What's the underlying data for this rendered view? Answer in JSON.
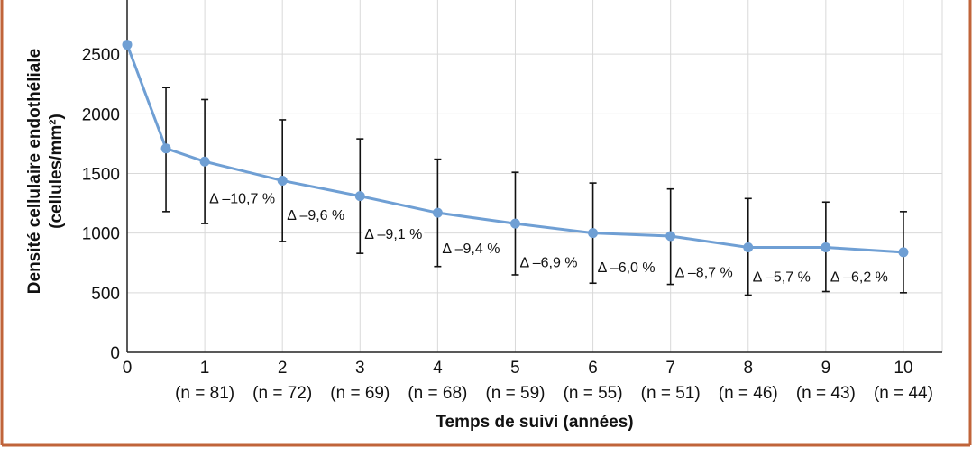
{
  "colors": {
    "frame": "#c0643a",
    "series": "#6f9fd4",
    "grid": "#d9d9d9",
    "axis": "#222222",
    "errorbar": "#111111"
  },
  "chart_data": {
    "type": "line",
    "title": "",
    "ylabel_line1": "Densité cellulaire endothéliale",
    "ylabel_line2": "(cellules/mm²)",
    "xlabel": "Temps de suivi (années)",
    "ylim": [
      0,
      3000
    ],
    "xlim": [
      0,
      10.5
    ],
    "grid": true,
    "yticks": [
      0,
      500,
      1000,
      1500,
      2000,
      2500
    ],
    "y_tick_labels": [
      "0",
      "500",
      "1000",
      "1500",
      "2000",
      "2500"
    ],
    "xticks": [
      0,
      1,
      2,
      3,
      4,
      5,
      6,
      7,
      8,
      9,
      10
    ],
    "x_tick_labels": [
      "0",
      "1",
      "2",
      "3",
      "4",
      "5",
      "6",
      "7",
      "8",
      "9",
      "10"
    ],
    "n_labels": [
      "(n = 81)",
      "(n = 72)",
      "(n = 69)",
      "(n = 68)",
      "(n = 59)",
      "(n = 55)",
      "(n = 51)",
      "(n = 46)",
      "(n = 43)",
      "(n = 44)"
    ],
    "series": [
      {
        "x": [
          0,
          0.5,
          1,
          2,
          3,
          4,
          5,
          6,
          7,
          8,
          9,
          10
        ],
        "y": [
          2580,
          1710,
          1600,
          1440,
          1310,
          1170,
          1080,
          1000,
          975,
          880,
          880,
          840
        ],
        "err_high": [
          null,
          2220,
          2120,
          1950,
          1790,
          1620,
          1510,
          1420,
          1370,
          1290,
          1260,
          1180
        ],
        "err_low": [
          null,
          1180,
          1080,
          930,
          830,
          720,
          650,
          580,
          570,
          480,
          510,
          500
        ]
      }
    ],
    "annotations": [
      {
        "text": "Δ –10,7 %",
        "x": 1,
        "y": 1260
      },
      {
        "text": "Δ –9,6 %",
        "x": 2,
        "y": 1120
      },
      {
        "text": "Δ –9,1 %",
        "x": 3,
        "y": 960
      },
      {
        "text": "Δ –9,4 %",
        "x": 4,
        "y": 840
      },
      {
        "text": "Δ –6,9 %",
        "x": 5,
        "y": 720
      },
      {
        "text": "Δ –6,0 %",
        "x": 6,
        "y": 680
      },
      {
        "text": "Δ –8,7 %",
        "x": 7,
        "y": 640
      },
      {
        "text": "Δ –5,7 %",
        "x": 8,
        "y": 600
      },
      {
        "text": "Δ –6,2 %",
        "x": 9,
        "y": 600
      }
    ]
  }
}
